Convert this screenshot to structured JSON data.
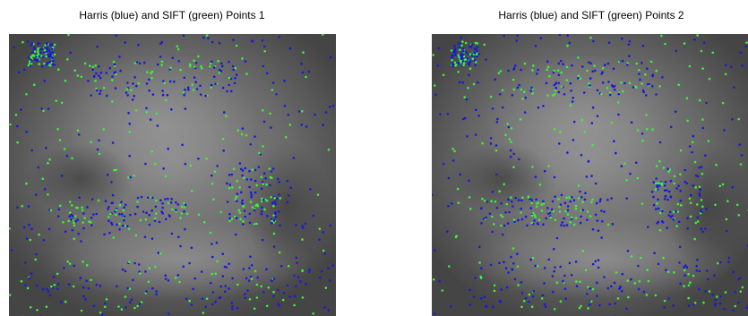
{
  "panels": [
    {
      "title": "Harris (blue) and SIFT (green) Points 1"
    },
    {
      "title": "Harris (blue) and SIFT (green) Points 2"
    }
  ]
}
